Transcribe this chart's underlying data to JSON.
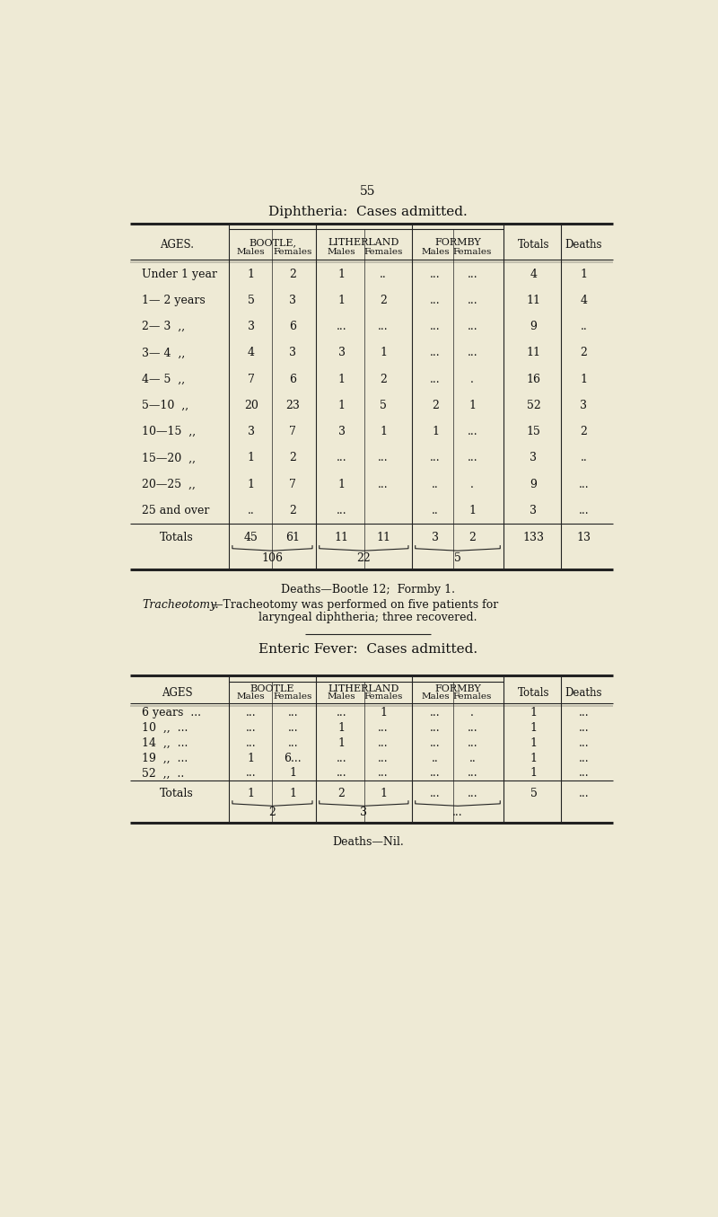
{
  "bg_color": "#eeead5",
  "page_number": "55",
  "title1": "Diphtheria:  Cases admitted.",
  "title2": "Enteric Fever:  Cases admitted.",
  "deaths_note1": "Deaths—Bootle 12;  Formby 1.",
  "trach_italic": "Tracheotomy.",
  "trach_normal": "—Tracheotomy was performed on five patients for",
  "trach_line2": "laryngeal diphtheria; three recovered.",
  "deaths_note2": "Deaths—Nil.",
  "diph_rows": [
    [
      "Under 1 year",
      "1",
      "2",
      "1",
      "..",
      "...",
      "...",
      "4",
      "1"
    ],
    [
      "1— 2 years",
      "5",
      "3",
      "1",
      "2",
      "...",
      "...",
      "11",
      "4"
    ],
    [
      "2— 3  ,,",
      "3",
      "6",
      "...",
      "...",
      "...",
      "...",
      "9",
      ".."
    ],
    [
      "3— 4  ,,",
      "4",
      "3",
      "3",
      "1",
      "...",
      "...",
      "11",
      "2"
    ],
    [
      "4— 5  ,,",
      "7",
      "6",
      "1",
      "2",
      "...",
      ".",
      "16",
      "1"
    ],
    [
      "5—10  ,,",
      "20",
      "23",
      "1",
      "5",
      "2",
      "1",
      "52",
      "3"
    ],
    [
      "10—15  ,,",
      "3",
      "7",
      "3",
      "1",
      "1",
      "...",
      "15",
      "2"
    ],
    [
      "15—20  ,,",
      "1",
      "2",
      "...",
      "...",
      "...",
      "...",
      "3",
      ".."
    ],
    [
      "20—25  ,,",
      "1",
      "7",
      "1",
      "...",
      "..",
      ".",
      "9",
      "..."
    ],
    [
      "25 and over",
      "..",
      "2",
      "...",
      "",
      "..",
      "1",
      "3",
      "..."
    ]
  ],
  "diph_totals": [
    "Totals",
    "45",
    "61",
    "11",
    "11",
    "3",
    "2",
    "133",
    "13"
  ],
  "diph_sub": [
    "106",
    "22",
    "5"
  ],
  "enteric_rows": [
    [
      "6 years  ...",
      "...",
      "...",
      "...",
      "1",
      "...",
      ".",
      "1",
      "..."
    ],
    [
      "10  ,,  ...",
      "...",
      "...",
      "1",
      "...",
      "...",
      "...",
      "1",
      "..."
    ],
    [
      "14  ,,  ...",
      "...",
      "...",
      "1",
      "...",
      "...",
      "...",
      "1",
      "..."
    ],
    [
      "19  ,,  ...",
      "1",
      "6...",
      "...",
      "...",
      "..",
      "..",
      "1",
      "..."
    ],
    [
      "52  ,,  ..",
      "...",
      "1",
      "...",
      "...",
      "...",
      "...",
      "1",
      "..."
    ]
  ],
  "enteric_totals": [
    "Totals",
    "1",
    "1",
    "2",
    "1",
    "...",
    "...",
    "5",
    "..."
  ],
  "enteric_sub": [
    "2",
    "3",
    "..."
  ]
}
